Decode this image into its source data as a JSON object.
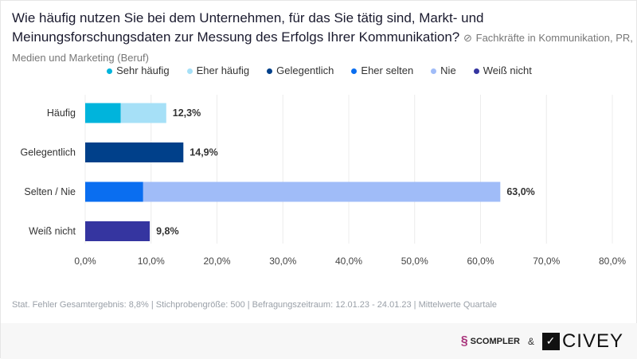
{
  "title": "Wie häufig nutzen Sie bei dem Unternehmen, für das Sie tätig sind, Markt- und Meinungsforschungsdaten zur Messung des Erfolgs Ihrer Kommunikation?",
  "subtitle": "Fachkräfte in Kommunikation, PR, Medien und Marketing (Beruf)",
  "subtitle_icon": "tag-icon",
  "footer": "Stat. Fehler Gesamtergebnis: 8,8% | Stichprobengröße: 500 | Befragungszeitraum: 12.01.23 - 24.01.23 | Mittelwerte Quartale",
  "logos": {
    "scompler": "SCOMPLER",
    "amp": "&",
    "civey": "CIVEY"
  },
  "chart_data": {
    "type": "bar",
    "orientation": "horizontal",
    "stacked": true,
    "categories": [
      "Häufig",
      "Gelegentlich",
      "Selten / Nie",
      "Weiß nicht"
    ],
    "series": [
      {
        "name": "Sehr häufig",
        "color": "#00b4dc",
        "values": [
          5.4,
          0,
          0,
          0
        ]
      },
      {
        "name": "Eher häufig",
        "color": "#a6e0f7",
        "values": [
          6.9,
          0,
          0,
          0
        ]
      },
      {
        "name": "Gelegentlich",
        "color": "#00408a",
        "values": [
          0,
          14.9,
          0,
          0
        ]
      },
      {
        "name": "Eher selten",
        "color": "#0a6ef0",
        "values": [
          0,
          0,
          8.8,
          0
        ]
      },
      {
        "name": "Nie",
        "color": "#a0bcf8",
        "values": [
          0,
          0,
          54.2,
          0
        ]
      },
      {
        "name": "Weiß nicht",
        "color": "#3535a0",
        "values": [
          0,
          0,
          0,
          9.8
        ]
      }
    ],
    "totals": [
      "12,3%",
      "14,9%",
      "63,0%",
      "9,8%"
    ],
    "xlim": [
      0,
      80
    ],
    "xticks": [
      "0,0%",
      "10,0%",
      "20,0%",
      "30,0%",
      "40,0%",
      "50,0%",
      "60,0%",
      "70,0%",
      "80,0%"
    ],
    "grid": true,
    "legend": "top-center"
  }
}
